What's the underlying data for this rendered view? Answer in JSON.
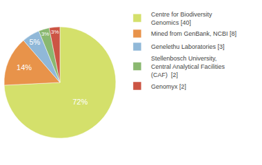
{
  "chart_data": {
    "type": "pie",
    "categories": [
      "Centre for Biodiversity\nGenomics [40]",
      "Mined from GenBank, NCBI [8]",
      "Genelethu Laboratories [3]",
      "Stellenbosch University,\nCentral Analytical Facilities\n(CAF)  [2]",
      "Genomyx [2]"
    ],
    "values": [
      72,
      14,
      5,
      3,
      3
    ],
    "value_labels": [
      "72%",
      "14%",
      "5%",
      "3%",
      "3%"
    ],
    "data_labels": true,
    "colors": [
      "#d4e06b",
      "#e8934a",
      "#90b8d8",
      "#8ab870",
      "#cc5544"
    ],
    "legend": "upper right"
  }
}
